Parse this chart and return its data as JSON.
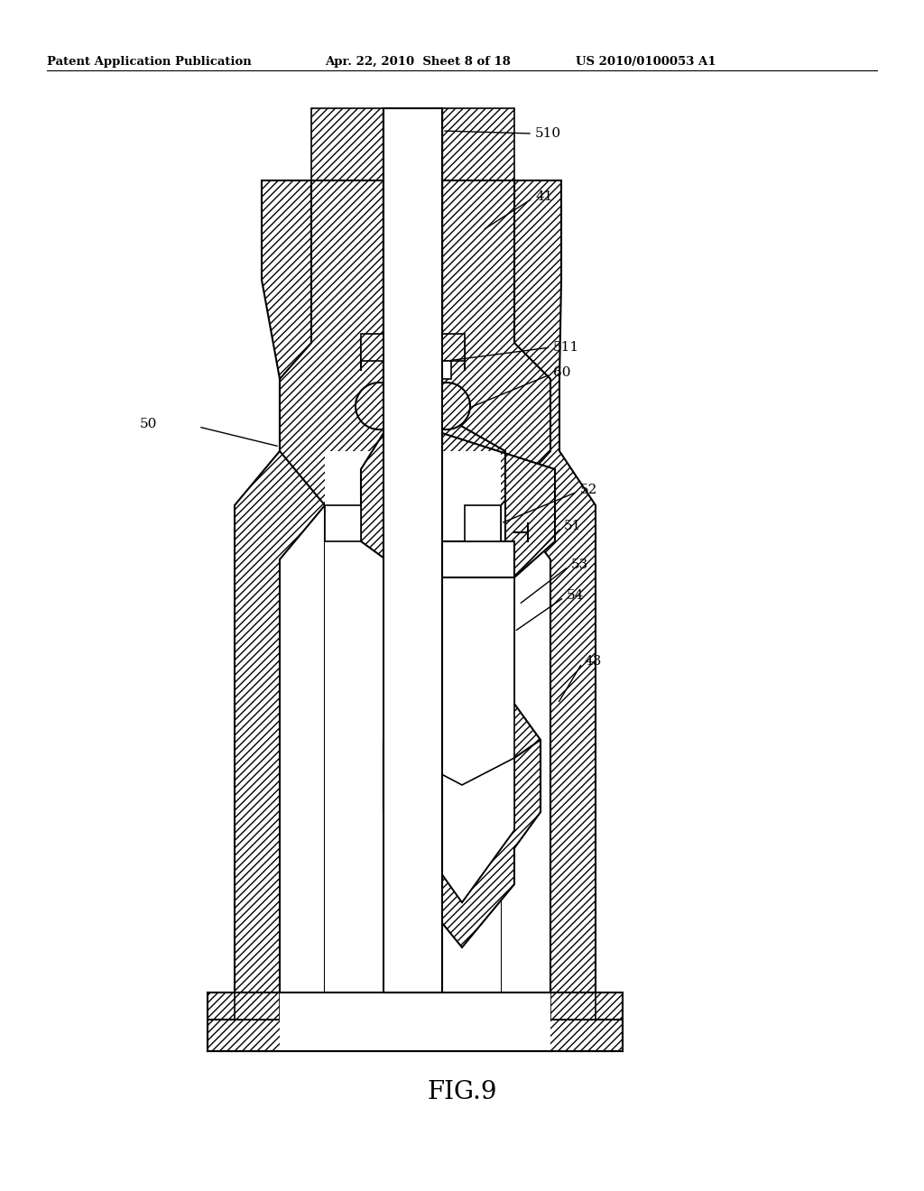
{
  "title": "FIG.9",
  "header_left": "Patent Application Publication",
  "header_mid": "Apr. 22, 2010  Sheet 8 of 18",
  "header_right": "US 2010/0100053 A1",
  "bg_color": "#ffffff"
}
